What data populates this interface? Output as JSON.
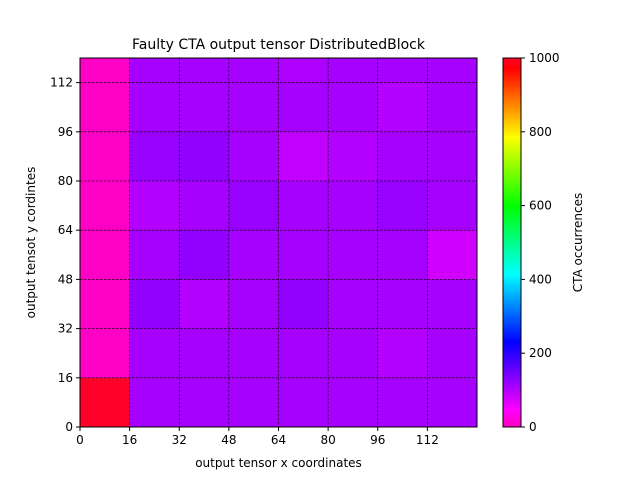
{
  "chart_data": {
    "type": "heatmap",
    "title": "Faulty CTA output tensor DistributedBlock",
    "xlabel": "output tensor x coordinates",
    "ylabel": "output tensot y cordintes",
    "colorbar_label": "CTA occurrences",
    "colormap": "gist_rainbow_r",
    "vmin": 0,
    "vmax": 1000,
    "xlim": [
      0,
      128
    ],
    "ylim": [
      0,
      120
    ],
    "x_ticks": [
      0,
      16,
      32,
      48,
      64,
      80,
      96,
      112
    ],
    "y_ticks": [
      0,
      16,
      32,
      48,
      64,
      80,
      96,
      112
    ],
    "colorbar_ticks": [
      0,
      200,
      400,
      600,
      800,
      1000
    ],
    "grid": true,
    "grid_style": "dashed",
    "cell_size": 16,
    "rows_bottom_to_top": [
      [
        1000,
        110,
        110,
        110,
        110,
        110,
        110,
        110
      ],
      [
        5,
        110,
        110,
        110,
        110,
        110,
        100,
        110
      ],
      [
        5,
        125,
        100,
        110,
        125,
        110,
        110,
        110
      ],
      [
        5,
        110,
        125,
        110,
        110,
        110,
        110,
        80
      ],
      [
        5,
        100,
        110,
        120,
        110,
        110,
        120,
        110
      ],
      [
        5,
        120,
        125,
        110,
        90,
        100,
        110,
        110
      ],
      [
        5,
        110,
        110,
        110,
        110,
        110,
        100,
        110
      ],
      [
        5,
        110,
        110,
        110,
        105,
        110,
        110,
        110
      ]
    ]
  }
}
